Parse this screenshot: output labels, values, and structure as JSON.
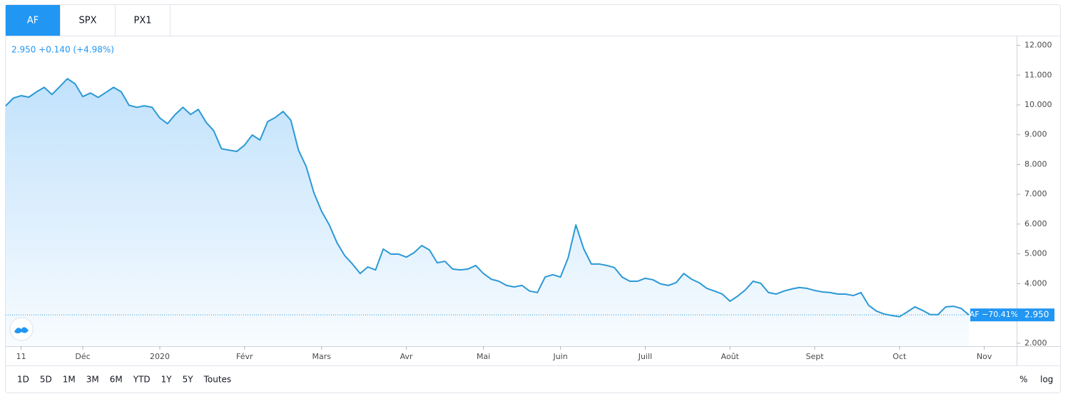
{
  "tabs": [
    "AF",
    "SPX",
    "PX1"
  ],
  "legend_text": "2.950 +0.140 (+4.98%)",
  "chart_data": {
    "type": "line",
    "categories": [
      null,
      null,
      "11",
      null,
      null,
      null,
      null,
      null,
      null,
      null,
      "Déc",
      null,
      null,
      null,
      null,
      null,
      null,
      null,
      null,
      null,
      "2020",
      null,
      null,
      null,
      null,
      null,
      null,
      null,
      null,
      null,
      null,
      "Févr",
      null,
      null,
      null,
      null,
      null,
      null,
      null,
      null,
      null,
      "Mars",
      null,
      null,
      null,
      null,
      null,
      null,
      null,
      null,
      null,
      null,
      "Avr",
      null,
      null,
      null,
      null,
      null,
      null,
      null,
      null,
      null,
      "Mai",
      null,
      null,
      null,
      null,
      null,
      null,
      null,
      null,
      null,
      "Juin",
      null,
      null,
      null,
      null,
      null,
      null,
      null,
      null,
      null,
      null,
      "Juill",
      null,
      null,
      null,
      null,
      null,
      null,
      null,
      null,
      null,
      null,
      "Août",
      null,
      null,
      null,
      null,
      null,
      null,
      null,
      null,
      null,
      null,
      "Sept",
      null,
      null,
      null,
      null,
      null,
      null,
      null,
      null,
      null,
      null,
      "Oct",
      null,
      null,
      null,
      null,
      null,
      null,
      null,
      null,
      null,
      null,
      "Nov",
      null,
      null,
      null
    ],
    "series": [
      {
        "name": "AF",
        "color": "#2b99d6",
        "values": [
          9.97,
          10.23,
          10.31,
          10.26,
          10.44,
          10.59,
          10.35,
          10.61,
          10.88,
          10.71,
          10.28,
          10.4,
          10.25,
          10.42,
          10.59,
          10.44,
          9.99,
          9.92,
          9.97,
          9.92,
          9.56,
          9.37,
          9.68,
          9.92,
          9.68,
          9.85,
          9.42,
          9.13,
          8.53,
          8.48,
          8.44,
          8.65,
          8.99,
          8.82,
          9.44,
          9.58,
          9.78,
          9.49,
          8.48,
          7.93,
          7.05,
          6.43,
          5.97,
          5.37,
          4.94,
          4.66,
          4.34,
          4.56,
          4.46,
          5.16,
          4.99,
          4.99,
          4.89,
          5.04,
          5.28,
          5.13,
          4.7,
          4.75,
          4.49,
          4.46,
          4.49,
          4.61,
          4.34,
          4.15,
          4.08,
          3.94,
          3.89,
          3.94,
          3.75,
          3.7,
          4.22,
          4.3,
          4.22,
          4.87,
          5.97,
          5.18,
          4.66,
          4.66,
          4.61,
          4.54,
          4.22,
          4.08,
          4.08,
          4.18,
          4.13,
          3.99,
          3.94,
          4.03,
          4.34,
          4.15,
          4.03,
          3.84,
          3.75,
          3.65,
          3.41,
          3.58,
          3.79,
          4.08,
          4.01,
          3.7,
          3.65,
          3.75,
          3.82,
          3.87,
          3.84,
          3.77,
          3.72,
          3.7,
          3.65,
          3.65,
          3.6,
          3.7,
          3.27,
          3.08,
          2.98,
          2.93,
          2.89,
          3.05,
          3.22,
          3.1,
          2.96,
          2.96,
          3.22,
          3.24,
          3.17,
          2.95,
          null,
          null,
          null,
          null,
          null
        ]
      }
    ],
    "ylim": [
      1.9,
      12.3
    ],
    "yticks": [
      {
        "value": 2,
        "label": "2.000"
      },
      {
        "value": 3,
        "label": "3.000"
      },
      {
        "value": 4,
        "label": "4.000"
      },
      {
        "value": 5,
        "label": "5.000"
      },
      {
        "value": 6,
        "label": "6.000"
      },
      {
        "value": 7,
        "label": "7.000"
      },
      {
        "value": 8,
        "label": "8.000"
      },
      {
        "value": 9,
        "label": "9.000"
      },
      {
        "value": 10,
        "label": "10.000"
      },
      {
        "value": 11,
        "label": "11.000"
      },
      {
        "value": 12,
        "label": "12.000"
      }
    ],
    "annotation": "AF −70.41%",
    "last_price": {
      "value": 2.95,
      "label": "2.950"
    },
    "area": true
  },
  "ranges": [
    "1D",
    "5D",
    "1M",
    "3M",
    "6M",
    "YTD",
    "1Y",
    "5Y",
    "Toutes"
  ],
  "options": [
    "%",
    "log"
  ]
}
